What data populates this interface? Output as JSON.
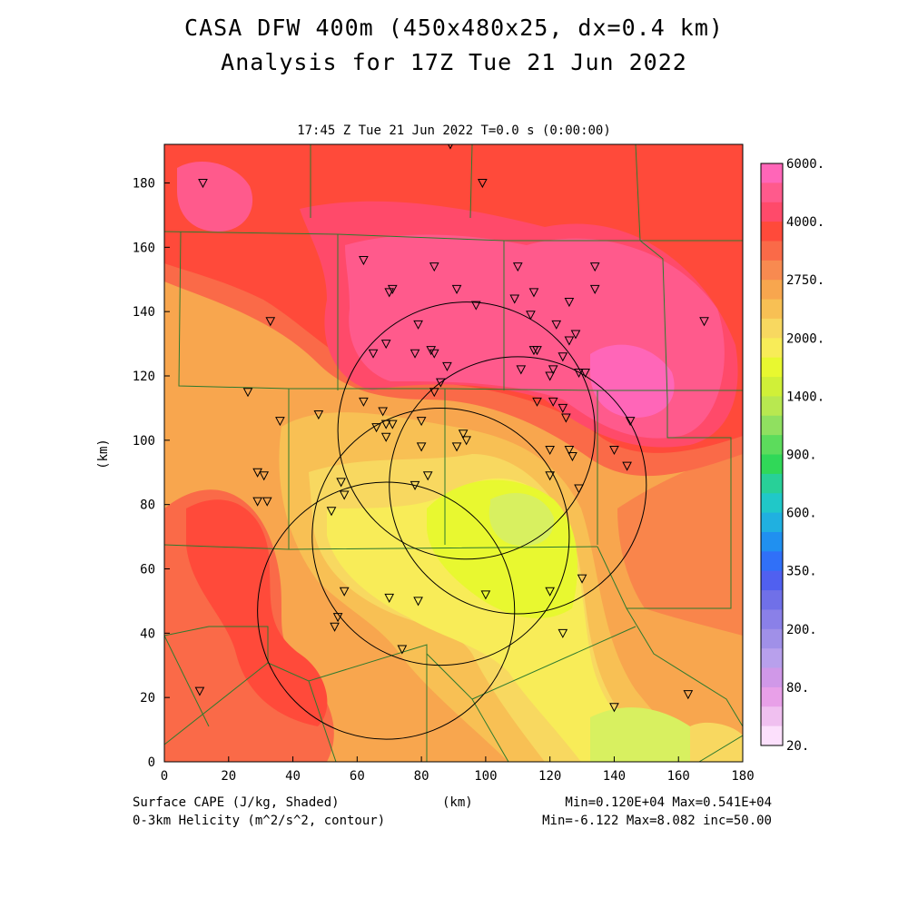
{
  "title_line1": "CASA DFW 400m (450x480x25, dx=0.4 km)",
  "title_line2": "Analysis for 17Z Tue 21 Jun 2022",
  "subtitle": "17:45 Z Tue 21 Jun 2022    T=0.0 s (0:00:00)",
  "x_axis": {
    "unit": "(km)",
    "ticks": [
      "0",
      "20",
      "40",
      "60",
      "80",
      "100",
      "120",
      "140",
      "160",
      "180"
    ]
  },
  "y_axis": {
    "unit": "(km)",
    "ticks": [
      "0",
      "20",
      "40",
      "60",
      "80",
      "100",
      "120",
      "140",
      "160",
      "180"
    ]
  },
  "colorbar": {
    "labels": [
      "6000.",
      "4000.",
      "2750.",
      "2000.",
      "1400.",
      "900.",
      "600.",
      "350.",
      "200.",
      "80.",
      "20."
    ],
    "colors": [
      "#ff66b8",
      "#ff5a8c",
      "#ff4a6a",
      "#ff4a3a",
      "#fa6a48",
      "#f88a50",
      "#f8a64e",
      "#f8c054",
      "#f8d860",
      "#f8ec58",
      "#e8f830",
      "#d0f038",
      "#b8e850",
      "#90e060",
      "#5cdc5c",
      "#30d858",
      "#28d098",
      "#20c8c8",
      "#20b0e0",
      "#2090f0",
      "#3070f8",
      "#5060f0",
      "#7070e8",
      "#8a80e8",
      "#a090e8",
      "#b8a0ec",
      "#d098e8",
      "#e8a0e8",
      "#f0c0f0",
      "#fce0fc"
    ]
  },
  "footer": {
    "field1": "Surface CAPE (J/kg, Shaded)",
    "field2": "0-3km Helicity (m^2/s^2, contour)",
    "xunit": "(km)",
    "stats1": "Min=0.120E+04 Max=0.541E+04",
    "stats2": "Min=-6.122 Max=8.082 inc=50.00"
  },
  "map_data": {
    "x_range_km": [
      0,
      180
    ],
    "y_range_km": [
      0,
      192
    ],
    "field": "Surface CAPE",
    "radar_rings_center_km": [
      [
        94,
        103
      ],
      [
        110,
        86
      ],
      [
        86,
        70
      ],
      [
        69,
        47
      ]
    ],
    "radar_ring_radius_km": 40,
    "stations_km": [
      [
        89,
        192
      ],
      [
        12,
        180
      ],
      [
        99,
        180
      ],
      [
        62,
        156
      ],
      [
        110,
        154
      ],
      [
        134,
        154
      ],
      [
        84,
        154
      ],
      [
        71,
        147
      ],
      [
        70,
        146
      ],
      [
        91,
        147
      ],
      [
        115,
        146
      ],
      [
        134,
        147
      ],
      [
        109,
        144
      ],
      [
        97,
        142
      ],
      [
        126,
        143
      ],
      [
        114,
        139
      ],
      [
        79,
        136
      ],
      [
        122,
        136
      ],
      [
        33,
        137
      ],
      [
        168,
        137
      ],
      [
        128,
        133
      ],
      [
        126,
        131
      ],
      [
        69,
        130
      ],
      [
        78,
        127
      ],
      [
        83,
        128
      ],
      [
        84,
        127
      ],
      [
        65,
        127
      ],
      [
        115,
        128
      ],
      [
        116,
        128
      ],
      [
        124,
        126
      ],
      [
        88,
        123
      ],
      [
        111,
        122
      ],
      [
        121,
        122
      ],
      [
        129,
        121
      ],
      [
        131,
        121
      ],
      [
        120,
        120
      ],
      [
        86,
        118
      ],
      [
        84,
        115
      ],
      [
        26,
        115
      ],
      [
        62,
        112
      ],
      [
        116,
        112
      ],
      [
        121,
        112
      ],
      [
        124,
        110
      ],
      [
        125,
        107
      ],
      [
        68,
        109
      ],
      [
        48,
        108
      ],
      [
        80,
        106
      ],
      [
        69,
        105
      ],
      [
        71,
        105
      ],
      [
        66,
        104
      ],
      [
        36,
        106
      ],
      [
        145,
        106
      ],
      [
        93,
        102
      ],
      [
        69,
        101
      ],
      [
        94,
        100
      ],
      [
        91,
        98
      ],
      [
        80,
        98
      ],
      [
        120,
        97
      ],
      [
        126,
        97
      ],
      [
        140,
        97
      ],
      [
        127,
        95
      ],
      [
        144,
        92
      ],
      [
        29,
        90
      ],
      [
        31,
        89
      ],
      [
        82,
        89
      ],
      [
        120,
        89
      ],
      [
        55,
        87
      ],
      [
        78,
        86
      ],
      [
        129,
        85
      ],
      [
        56,
        83
      ],
      [
        29,
        81
      ],
      [
        32,
        81
      ],
      [
        52,
        78
      ],
      [
        130,
        57
      ],
      [
        100,
        52
      ],
      [
        56,
        53
      ],
      [
        120,
        53
      ],
      [
        70,
        51
      ],
      [
        79,
        50
      ],
      [
        54,
        45
      ],
      [
        53,
        42
      ],
      [
        124,
        40
      ],
      [
        74,
        35
      ],
      [
        11,
        22
      ],
      [
        140,
        17
      ],
      [
        163,
        21
      ]
    ]
  }
}
